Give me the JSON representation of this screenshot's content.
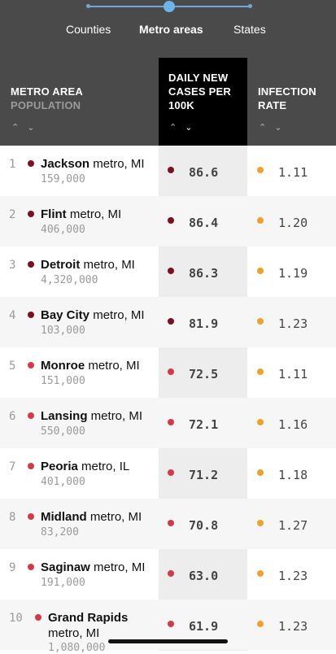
{
  "tabs": [
    {
      "label": "Counties",
      "active": false
    },
    {
      "label": "Metro areas",
      "active": true
    },
    {
      "label": "States",
      "active": false
    }
  ],
  "columns": {
    "metro_area": "METRO AREA",
    "population": "POPULATION",
    "cases_line1": "DAILY NEW",
    "cases_line2": "CASES PER",
    "cases_line3": "100K",
    "rate_line1": "INFECTION",
    "rate_line2": "RATE"
  },
  "sort_icons": {
    "up": "chevron-up-icon",
    "down": "chevron-down-icon"
  },
  "colors": {
    "dark_red": "#7a1020",
    "red": "#d23a4a",
    "orange": "#f0a030",
    "header_bg": "#4a4a4a",
    "active_col_bg": "#000000"
  },
  "rows": [
    {
      "rank": "1",
      "name": "Jackson",
      "suffix": " metro, MI",
      "population": "159,000",
      "cases": "86.6",
      "rate": "1.11",
      "level": "dark"
    },
    {
      "rank": "2",
      "name": "Flint",
      "suffix": " metro, MI",
      "population": "406,000",
      "cases": "86.4",
      "rate": "1.20",
      "level": "dark"
    },
    {
      "rank": "3",
      "name": "Detroit",
      "suffix": " metro, MI",
      "population": "4,320,000",
      "cases": "86.3",
      "rate": "1.19",
      "level": "dark"
    },
    {
      "rank": "4",
      "name": "Bay City",
      "suffix": " metro, MI",
      "population": "103,000",
      "cases": "81.9",
      "rate": "1.23",
      "level": "dark"
    },
    {
      "rank": "5",
      "name": "Monroe",
      "suffix": " metro, MI",
      "population": "151,000",
      "cases": "72.5",
      "rate": "1.11",
      "level": "red"
    },
    {
      "rank": "6",
      "name": "Lansing",
      "suffix": " metro, MI",
      "population": "550,000",
      "cases": "72.1",
      "rate": "1.16",
      "level": "red"
    },
    {
      "rank": "7",
      "name": "Peoria",
      "suffix": " metro, IL",
      "population": "401,000",
      "cases": "71.2",
      "rate": "1.18",
      "level": "red"
    },
    {
      "rank": "8",
      "name": "Midland",
      "suffix": " metro, MI",
      "population": "83,200",
      "cases": "70.8",
      "rate": "1.27",
      "level": "red"
    },
    {
      "rank": "9",
      "name": "Saginaw",
      "suffix": " metro, MI",
      "population": "191,000",
      "cases": "63.0",
      "rate": "1.23",
      "level": "red"
    },
    {
      "rank": "10",
      "name": "Grand Rapids",
      "suffix": "metro, MI",
      "population": "1,080,000",
      "cases": "61.9",
      "rate": "1.23",
      "level": "red"
    }
  ]
}
